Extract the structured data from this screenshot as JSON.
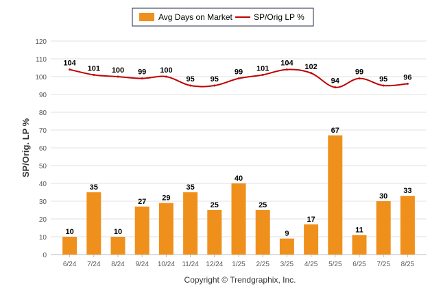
{
  "chart_data": {
    "type": "bar",
    "categories": [
      "6/24",
      "7/24",
      "8/24",
      "9/24",
      "10/24",
      "11/24",
      "12/24",
      "1/25",
      "2/25",
      "3/25",
      "4/25",
      "5/25",
      "6/25",
      "7/25",
      "8/25"
    ],
    "series": [
      {
        "name": "Avg Days on Market",
        "type": "bar",
        "color": "#f0901c",
        "values": [
          10,
          35,
          10,
          27,
          29,
          35,
          25,
          40,
          25,
          9,
          17,
          67,
          11,
          30,
          33
        ]
      },
      {
        "name": "SP/Orig LP %",
        "type": "line",
        "color": "#c00000",
        "values": [
          104,
          101,
          100,
          99,
          100,
          95,
          95,
          99,
          101,
          104,
          102,
          94,
          99,
          95,
          96
        ]
      }
    ],
    "ylabel": "SP/Orig. LP %",
    "ylim": [
      0,
      120
    ],
    "yticks": [
      0,
      10,
      20,
      30,
      40,
      50,
      60,
      70,
      80,
      90,
      100,
      110,
      120
    ],
    "grid": true,
    "legend_position": "top-center"
  },
  "footer": "Copyright © Trendgraphix, Inc."
}
